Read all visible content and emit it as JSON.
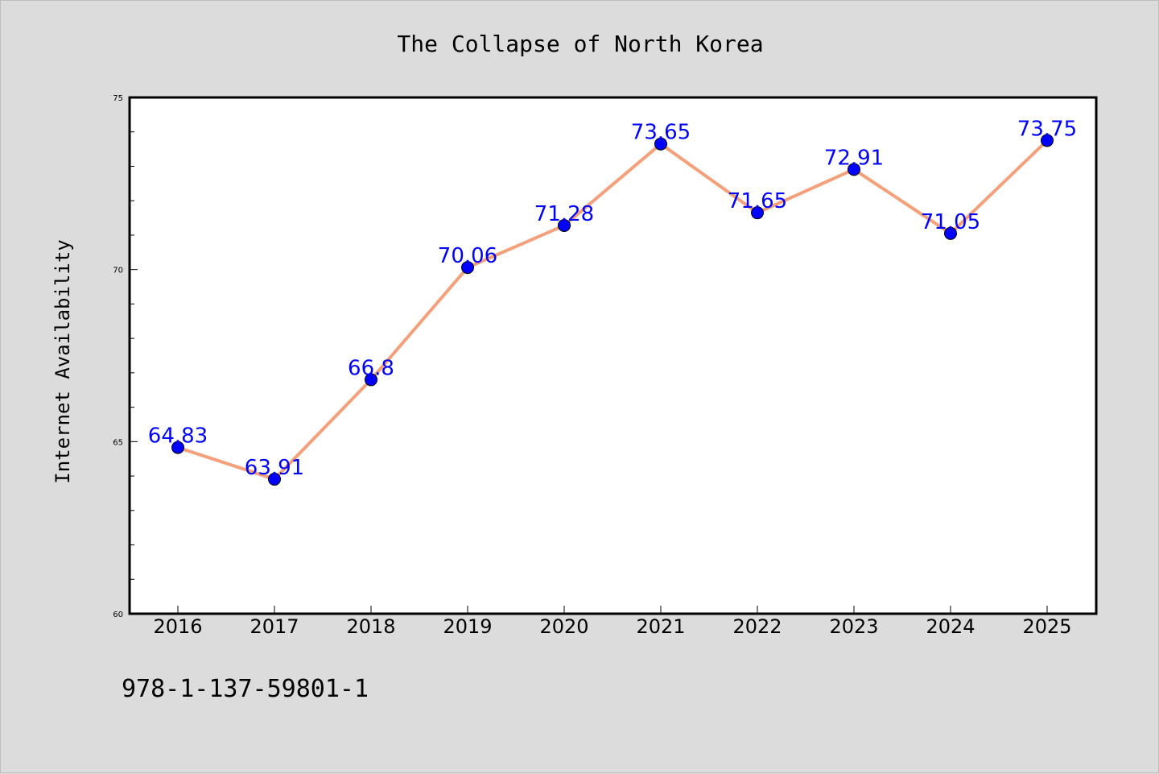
{
  "chart_data": {
    "type": "line",
    "title": "The Collapse of North Korea",
    "ylabel": "Internet Availability",
    "xlabel": "",
    "categories": [
      "2016",
      "2017",
      "2018",
      "2019",
      "2020",
      "2021",
      "2022",
      "2023",
      "2024",
      "2025"
    ],
    "series": [
      {
        "values": [
          64.83,
          63.91,
          66.8,
          70.06,
          71.28,
          73.65,
          71.65,
          72.91,
          71.05,
          73.75
        ],
        "labels": [
          "64.83",
          "63.91",
          "66.8",
          "70.06",
          "71.28",
          "73.65",
          "71.65",
          "72.91",
          "71.05",
          "73.75"
        ],
        "line_color": "#f4a07a",
        "marker_color": "#0000ff"
      }
    ],
    "ylim": [
      60,
      75
    ],
    "yticks": [
      "60",
      "65",
      "70",
      "75"
    ],
    "grid": false,
    "legend": "none"
  },
  "footer": {
    "isbn": "978-1-137-59801-1"
  }
}
